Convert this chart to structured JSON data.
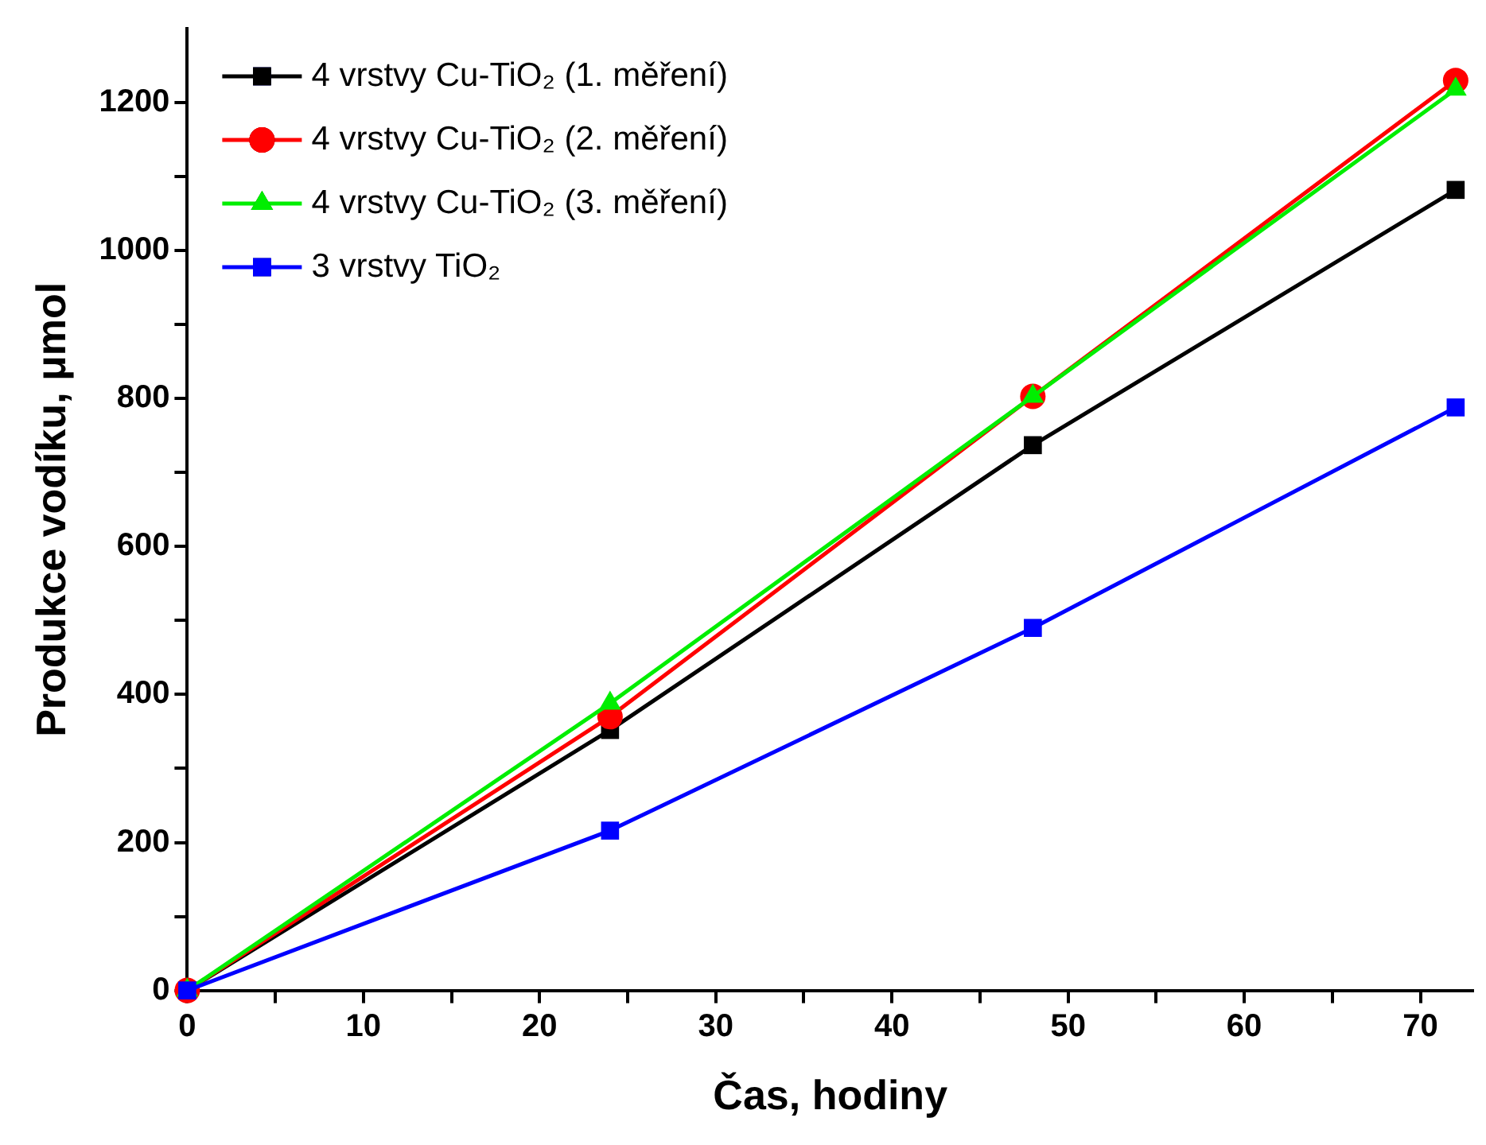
{
  "chart_data": {
    "type": "line",
    "xlabel": "Čas, hodiny",
    "ylabel": "Produkce vodíku, μmol",
    "x": [
      0,
      24,
      48,
      72
    ],
    "series": [
      {
        "name": "4 vrstvy Cu-TiO₂ (1. měření)",
        "color": "#000000",
        "marker": "square",
        "values": [
          0,
          352,
          737,
          1082
        ]
      },
      {
        "name": "4 vrstvy Cu-TiO₂ (2. měření)",
        "color": "#ff0000",
        "marker": "circle",
        "values": [
          0,
          370,
          803,
          1230
        ]
      },
      {
        "name": "4 vrstvy Cu-TiO₂ (3. měření)",
        "color": "#00ee00",
        "marker": "triangle",
        "values": [
          0,
          388,
          803,
          1218
        ]
      },
      {
        "name": "3 vrstvy TiO₂",
        "color": "#0000ff",
        "marker": "square",
        "values": [
          0,
          216,
          490,
          788
        ]
      }
    ],
    "xlim": [
      0,
      73
    ],
    "xticks": [
      0,
      10,
      20,
      30,
      40,
      50,
      60,
      70
    ],
    "ylim": [
      0,
      1300
    ],
    "yticks": [
      0,
      200,
      400,
      600,
      800,
      1000,
      1200
    ],
    "grid": false,
    "legend": "top left",
    "line_style": "solid"
  }
}
